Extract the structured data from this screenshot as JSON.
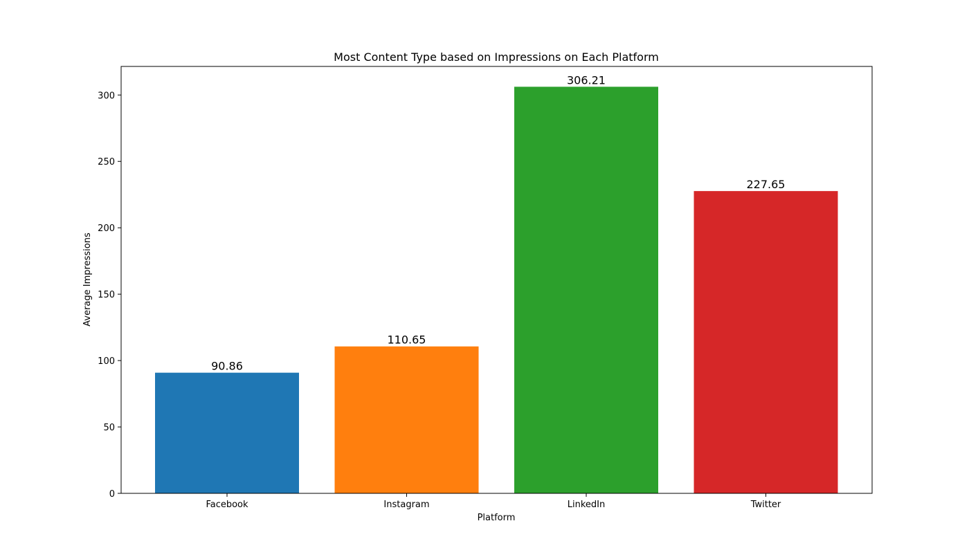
{
  "chart_data": {
    "type": "bar",
    "title": "Most Content Type based on Impressions on Each Platform",
    "xlabel": "Platform",
    "ylabel": "Average Impressions",
    "categories": [
      "Facebook",
      "Instagram",
      "LinkedIn",
      "Twitter"
    ],
    "values": [
      90.86,
      110.65,
      306.21,
      227.65
    ],
    "value_labels": [
      "90.86",
      "110.65",
      "306.21",
      "227.65"
    ],
    "colors": [
      "#1f77b4",
      "#ff7f0e",
      "#2ca02c",
      "#d62728"
    ],
    "ylim": [
      0,
      321.52
    ],
    "yticks": [
      0,
      50,
      100,
      150,
      200,
      250,
      300
    ],
    "ytick_labels": [
      "0",
      "50",
      "100",
      "150",
      "200",
      "250",
      "300"
    ],
    "grid": false,
    "legend": null
  }
}
